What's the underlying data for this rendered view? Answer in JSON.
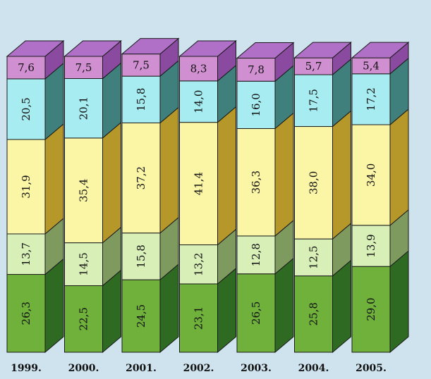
{
  "chart_data": {
    "type": "bar",
    "stacked": true,
    "style": "3d",
    "categories": [
      "1999.",
      "2000.",
      "2001.",
      "2002.",
      "2003.",
      "2004.",
      "2005."
    ],
    "series": [
      {
        "values": [
          26.3,
          22.5,
          24.5,
          23.1,
          26.5,
          25.8,
          29.0
        ],
        "labels": [
          "26,3",
          "22,5",
          "24,5",
          "23,1",
          "26,5",
          "25,8",
          "29,0"
        ],
        "front": "#6fb13a",
        "side": "#2f6a22",
        "top": "#8fcf5a"
      },
      {
        "values": [
          13.7,
          14.5,
          15.8,
          13.2,
          12.8,
          12.5,
          13.9
        ],
        "labels": [
          "13,7",
          "14,5",
          "15,8",
          "13,2",
          "12,8",
          "12,5",
          "13,9"
        ],
        "front": "#d8f0b8",
        "side": "#7e9a5e",
        "top": "#e6f7cc"
      },
      {
        "values": [
          31.9,
          35.4,
          37.2,
          41.4,
          36.3,
          38.0,
          34.0
        ],
        "labels": [
          "31,9",
          "35,4",
          "37,2",
          "41,4",
          "36,3",
          "38,0",
          "34,0"
        ],
        "front": "#fbf6a6",
        "side": "#b6982a",
        "top": "#fdf9c8"
      },
      {
        "values": [
          20.5,
          20.1,
          15.8,
          14.0,
          16.0,
          17.5,
          17.2
        ],
        "labels": [
          "20,5",
          "20,1",
          "15,8",
          "14,0",
          "16,0",
          "17,5",
          "17,2"
        ],
        "front": "#a6ecf0",
        "side": "#3f7f7c",
        "top": "#c6f4f6"
      },
      {
        "values": [
          7.6,
          7.5,
          7.5,
          8.3,
          7.8,
          5.7,
          5.4
        ],
        "labels": [
          "7,6",
          "7,5",
          "7,5",
          "8,3",
          "7,8",
          "5,7",
          "5,4"
        ],
        "front": "#cf8fd0",
        "side": "#8a4aa0",
        "top": "#b070c8"
      }
    ]
  },
  "colors": {
    "background": "#cfe3ee",
    "text": "#111111"
  }
}
